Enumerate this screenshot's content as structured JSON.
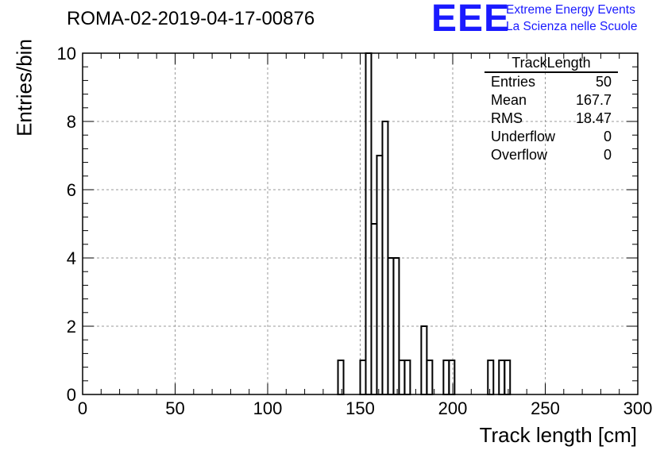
{
  "title": "ROMA-02-2019-04-17-00876",
  "logo": {
    "text": "EEE",
    "line1": "Extreme Energy Events",
    "line2": "La Scienza nelle Scuole",
    "color": "#1a1aff"
  },
  "stats_box": {
    "title": "TrackLength",
    "rows": [
      {
        "label": "Entries",
        "value": "50"
      },
      {
        "label": "Mean",
        "value": "167.7"
      },
      {
        "label": "RMS",
        "value": "18.47"
      },
      {
        "label": "Underflow",
        "value": "0"
      },
      {
        "label": "Overflow",
        "value": "0"
      }
    ]
  },
  "chart_data": {
    "type": "bar",
    "style": "step-histogram",
    "title": "ROMA-02-2019-04-17-00876",
    "xlabel": "Track length [cm]",
    "ylabel": "Entries/bin",
    "xlim": [
      0,
      300
    ],
    "ylim": [
      0,
      10
    ],
    "bin_width": 3,
    "x_ticks": [
      "0",
      "50",
      "100",
      "150",
      "200",
      "250",
      "300"
    ],
    "y_ticks": [
      "0",
      "2",
      "4",
      "6",
      "8",
      "10"
    ],
    "grid": true,
    "legend": "top-right stats box",
    "bins": [
      {
        "x": 138,
        "count": 1
      },
      {
        "x": 150,
        "count": 1
      },
      {
        "x": 153,
        "count": 10
      },
      {
        "x": 156,
        "count": 5
      },
      {
        "x": 159,
        "count": 7
      },
      {
        "x": 162,
        "count": 8
      },
      {
        "x": 165,
        "count": 4
      },
      {
        "x": 168,
        "count": 4
      },
      {
        "x": 171,
        "count": 1
      },
      {
        "x": 174,
        "count": 1
      },
      {
        "x": 183,
        "count": 2
      },
      {
        "x": 186,
        "count": 1
      },
      {
        "x": 195,
        "count": 1
      },
      {
        "x": 198,
        "count": 1
      },
      {
        "x": 219,
        "count": 1
      },
      {
        "x": 225,
        "count": 1
      },
      {
        "x": 228,
        "count": 1
      }
    ]
  }
}
